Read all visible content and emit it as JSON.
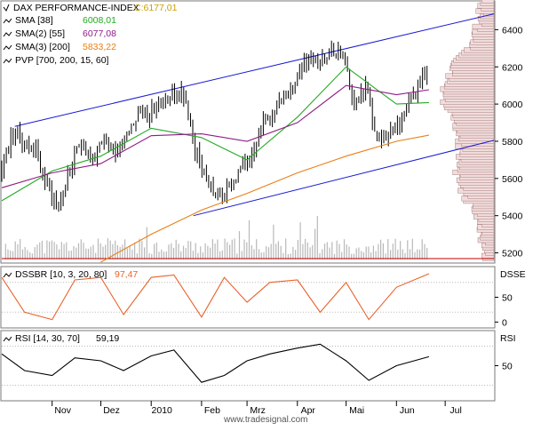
{
  "panels": {
    "main": {
      "title": "DAX PERFORMANCE-INDEX",
      "close_label": "C:6177,01",
      "legend": [
        {
          "label": "SMA [38]",
          "value": "6008,01",
          "color": "#22aa22"
        },
        {
          "label": "SMA(2) [55]",
          "value": "6077,08",
          "color": "#8e1b86"
        },
        {
          "label": "SMA(3) [200]",
          "value": "5833,22",
          "color": "#e87f13"
        },
        {
          "label": "PVP [700, 200, 15, 60]",
          "value": "",
          "color": "#000000"
        }
      ],
      "y_ticks": [
        "6400",
        "6200",
        "6000",
        "5800",
        "5600",
        "5400",
        "5200"
      ],
      "y_tick_values": [
        6400,
        6200,
        6000,
        5800,
        5600,
        5400,
        5200
      ],
      "ylim": [
        5150,
        6550
      ]
    },
    "dssbr": {
      "label": "DSSBR [10, 3, 20, 80]",
      "value": "97,47",
      "axis_title": "DSSE",
      "y_ticks": [
        "50",
        "0"
      ],
      "y_tick_values": [
        50,
        0
      ],
      "ylim": [
        -10,
        110
      ],
      "color": "#e8632b"
    },
    "rsi": {
      "label": "RSI [14, 30, 70]",
      "value": "59,19",
      "axis_title": "RSI",
      "y_ticks": [
        "50"
      ],
      "y_tick_values": [
        50
      ],
      "ylim": [
        15,
        85
      ],
      "color": "#000000"
    }
  },
  "x_labels": [
    "Nov",
    "Dez",
    "2010",
    "Feb",
    "Mrz",
    "Apr",
    "Mai",
    "Jun",
    "Jul"
  ],
  "x_label_days": [
    31,
    61,
    92,
    123,
    151,
    182,
    212,
    243,
    273
  ],
  "footer": "www.tradesignal.com",
  "colors": {
    "channel": "#1a1ad0",
    "candle": "#000000",
    "volume": "#b8b8b8",
    "pvp_fill": "#f1dcdc",
    "pvp_stroke": "#9a6a6a",
    "ref_line": "#c00000"
  },
  "chart_data": {
    "type": "line",
    "title": "DAX PERFORMANCE-INDEX",
    "x_axis": {
      "type": "date",
      "range": [
        "2009-10-01",
        "2010-07-31"
      ]
    },
    "series": [
      {
        "name": "DAX PERFORMANCE-INDEX",
        "x": [
          "2009-10-01",
          "2009-10-08",
          "2009-10-15",
          "2009-10-22",
          "2009-10-29",
          "2009-11-05",
          "2009-11-12",
          "2009-11-19",
          "2009-11-26",
          "2009-12-03",
          "2009-12-10",
          "2009-12-17",
          "2009-12-24",
          "2009-12-31",
          "2010-01-07",
          "2010-01-14",
          "2010-01-21",
          "2010-01-28",
          "2010-02-04",
          "2010-02-11",
          "2010-02-18",
          "2010-02-25",
          "2010-03-04",
          "2010-03-11",
          "2010-03-18",
          "2010-03-25",
          "2010-04-01",
          "2010-04-08",
          "2010-04-15",
          "2010-04-22",
          "2010-04-29",
          "2010-05-06",
          "2010-05-13",
          "2010-05-20",
          "2010-05-27",
          "2010-06-03",
          "2010-06-10",
          "2010-06-17",
          "2010-06-21"
        ],
        "y": [
          5650,
          5850,
          5800,
          5750,
          5550,
          5450,
          5650,
          5800,
          5700,
          5800,
          5750,
          5850,
          5950,
          5950,
          6000,
          6050,
          6050,
          5750,
          5600,
          5500,
          5550,
          5650,
          5750,
          5900,
          5950,
          6050,
          6150,
          6250,
          6250,
          6300,
          6250,
          6000,
          6100,
          5800,
          5850,
          5900,
          6050,
          6150,
          6177
        ]
      },
      {
        "name": "SMA [38]",
        "x": [
          "2009-10-01",
          "2009-11-01",
          "2009-12-01",
          "2010-01-01",
          "2010-02-01",
          "2010-03-01",
          "2010-04-01",
          "2010-05-01",
          "2010-06-01",
          "2010-06-21"
        ],
        "y": [
          5480,
          5640,
          5720,
          5870,
          5820,
          5700,
          5930,
          6200,
          6000,
          6008
        ]
      },
      {
        "name": "SMA(2) [55]",
        "x": [
          "2009-10-01",
          "2009-11-01",
          "2009-12-01",
          "2010-01-01",
          "2010-02-01",
          "2010-03-01",
          "2010-04-01",
          "2010-05-01",
          "2010-06-01",
          "2010-06-21"
        ],
        "y": [
          5550,
          5630,
          5680,
          5830,
          5840,
          5800,
          5900,
          6100,
          6050,
          6077
        ]
      },
      {
        "name": "SMA(3) [200]",
        "x": [
          "2009-12-01",
          "2010-01-01",
          "2010-02-01",
          "2010-03-01",
          "2010-04-01",
          "2010-05-01",
          "2010-06-01",
          "2010-06-21"
        ],
        "y": [
          5150,
          5300,
          5430,
          5520,
          5630,
          5720,
          5800,
          5833
        ]
      },
      {
        "name": "DSSBR [10, 3, 20, 80]",
        "x": [
          "2009-10-01",
          "2009-10-15",
          "2009-11-01",
          "2009-11-15",
          "2009-12-01",
          "2009-12-15",
          "2010-01-01",
          "2010-01-15",
          "2010-02-01",
          "2010-02-15",
          "2010-03-01",
          "2010-03-15",
          "2010-04-01",
          "2010-04-15",
          "2010-05-01",
          "2010-05-15",
          "2010-06-01",
          "2010-06-21"
        ],
        "y": [
          90,
          20,
          5,
          85,
          90,
          15,
          90,
          95,
          10,
          90,
          40,
          80,
          85,
          20,
          80,
          5,
          70,
          97.47
        ]
      },
      {
        "name": "RSI [14, 30, 70]",
        "x": [
          "2009-10-01",
          "2009-10-15",
          "2009-11-01",
          "2009-11-15",
          "2009-12-01",
          "2009-12-15",
          "2010-01-01",
          "2010-01-15",
          "2010-02-01",
          "2010-02-15",
          "2010-03-01",
          "2010-03-15",
          "2010-04-01",
          "2010-04-15",
          "2010-05-01",
          "2010-05-15",
          "2010-06-01",
          "2010-06-21"
        ],
        "y": [
          62,
          45,
          40,
          58,
          55,
          45,
          60,
          66,
          33,
          40,
          55,
          62,
          68,
          72,
          55,
          35,
          50,
          59.19
        ]
      }
    ],
    "ylim": [
      5150,
      6550
    ],
    "grid": false,
    "legend_position": "top-left"
  }
}
